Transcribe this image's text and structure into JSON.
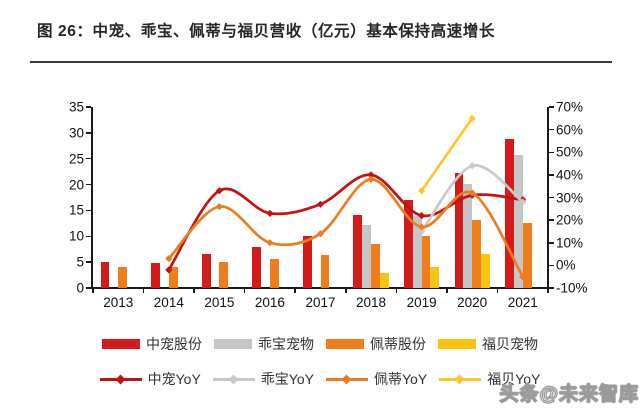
{
  "watermark": {
    "text": "头条@未来智库"
  },
  "chart_data": {
    "type": "bar+line",
    "title": "图 26：中宠、乖宝、佩蒂与福贝营收（亿元）基本保持高速增长",
    "categories": [
      "2013",
      "2014",
      "2015",
      "2016",
      "2017",
      "2018",
      "2019",
      "2020",
      "2021"
    ],
    "left_axis": {
      "ticks": [
        "0",
        "5",
        "10",
        "15",
        "20",
        "25",
        "30",
        "35"
      ],
      "min": 0,
      "max": 35
    },
    "right_axis": {
      "ticks": [
        "-10%",
        "0%",
        "10%",
        "20%",
        "30%",
        "40%",
        "50%",
        "60%",
        "70%"
      ],
      "min": -10,
      "max": 70
    },
    "grid": false,
    "legend_position": "bottom",
    "bar_series": [
      {
        "name": "中宠股份",
        "color": "#D31B1B",
        "values": [
          5.0,
          4.9,
          6.5,
          8.0,
          10.1,
          14.1,
          17.1,
          22.3,
          28.8
        ]
      },
      {
        "name": "乖宝宠物",
        "color": "#C6C6C7",
        "values": [
          null,
          null,
          null,
          null,
          null,
          12.2,
          14.0,
          20.1,
          25.7
        ]
      },
      {
        "name": "佩蒂股份",
        "color": "#EF7D1B",
        "values": [
          4.0,
          4.1,
          5.1,
          5.6,
          6.3,
          8.6,
          10.1,
          13.2,
          12.6
        ]
      },
      {
        "name": "福贝宠物",
        "color": "#F6C411",
        "values": [
          null,
          null,
          null,
          null,
          null,
          3.0,
          4.0,
          6.6,
          null
        ]
      }
    ],
    "line_series": [
      {
        "name": "中宠YoY",
        "color": "#C41112",
        "unit": "%",
        "values": [
          null,
          -2,
          33,
          23,
          27,
          40,
          22,
          31,
          29
        ]
      },
      {
        "name": "乖宝YoY",
        "color": "#C9C9C9",
        "unit": "%",
        "values": [
          null,
          null,
          null,
          null,
          null,
          null,
          15,
          44,
          28
        ]
      },
      {
        "name": "佩蒂YoY",
        "color": "#ED7C1E",
        "unit": "%",
        "values": [
          null,
          3,
          26,
          10,
          14,
          38,
          17,
          32,
          -5
        ]
      },
      {
        "name": "福贝YoY",
        "color": "#FDC62A",
        "unit": "%",
        "values": [
          null,
          null,
          null,
          null,
          null,
          null,
          33,
          65,
          null
        ]
      }
    ]
  }
}
